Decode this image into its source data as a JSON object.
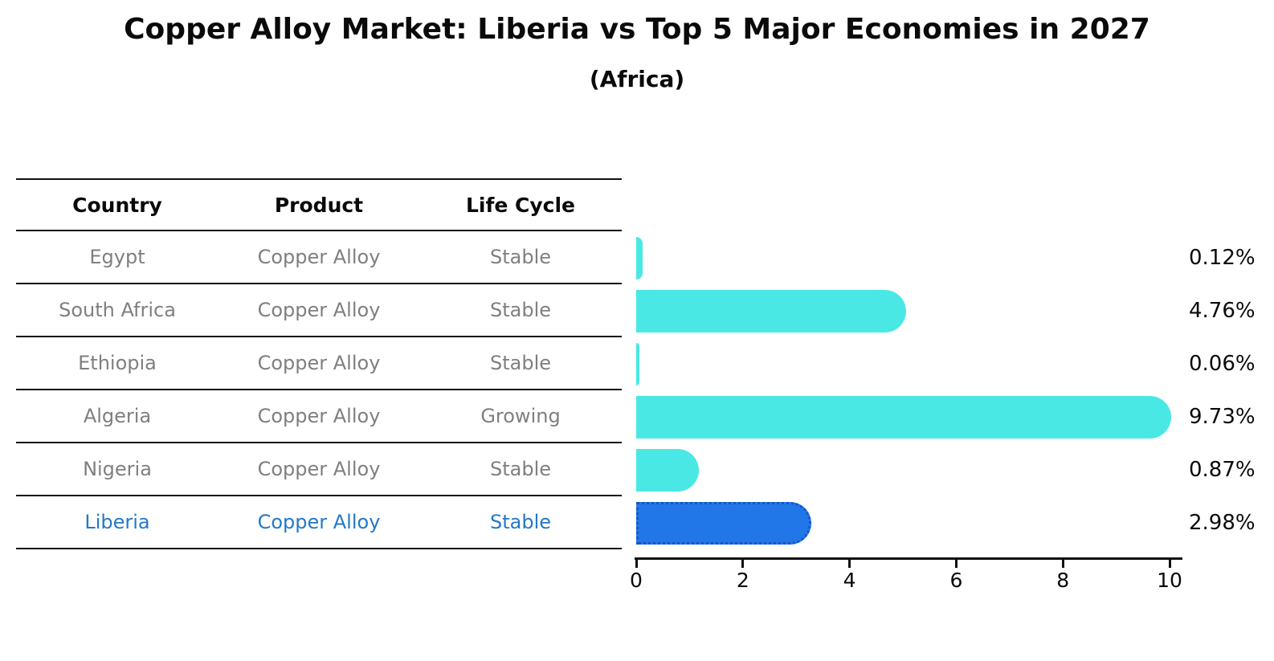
{
  "title": "Copper Alloy Market: Liberia vs Top 5 Major Economies in 2027",
  "subtitle": "(Africa)",
  "table": {
    "headers": [
      "Country",
      "Product",
      "Life Cycle"
    ],
    "rows": [
      {
        "country": "Egypt",
        "product": "Copper Alloy",
        "life_cycle": "Stable",
        "highlight": false
      },
      {
        "country": "South Africa",
        "product": "Copper Alloy",
        "life_cycle": "Stable",
        "highlight": false
      },
      {
        "country": "Ethiopia",
        "product": "Copper Alloy",
        "life_cycle": "Stable",
        "highlight": false
      },
      {
        "country": "Algeria",
        "product": "Copper Alloy",
        "life_cycle": "Growing",
        "highlight": false
      },
      {
        "country": "Nigeria",
        "product": "Copper Alloy",
        "life_cycle": "Stable",
        "highlight": false
      },
      {
        "country": "Liberia",
        "product": "Copper Alloy",
        "life_cycle": "Stable",
        "highlight": true
      }
    ]
  },
  "chart_data": {
    "type": "bar",
    "orientation": "horizontal",
    "title": "Copper Alloy Market: Liberia vs Top 5 Major Economies in 2027",
    "subtitle": "(Africa)",
    "categories": [
      "Egypt",
      "South Africa",
      "Ethiopia",
      "Algeria",
      "Nigeria",
      "Liberia"
    ],
    "values": [
      0.12,
      4.76,
      0.06,
      9.73,
      0.87,
      2.98
    ],
    "value_labels": [
      "0.12%",
      "4.76%",
      "0.06%",
      "9.73%",
      "0.87%",
      "2.98%"
    ],
    "xlim": [
      0,
      10
    ],
    "x_ticks": [
      0,
      2,
      4,
      6,
      8,
      10
    ],
    "grid": false,
    "legend": false,
    "highlight_category": "Liberia",
    "colors": {
      "bar_default": "#4ae8e4",
      "bar_highlight": "#2277e8",
      "bar_highlight_border": "#1456c8",
      "highlight_text": "#2478c8",
      "table_text": "#7f7f7f",
      "header_text": "#0a0a0a",
      "axis": "#111111"
    }
  }
}
